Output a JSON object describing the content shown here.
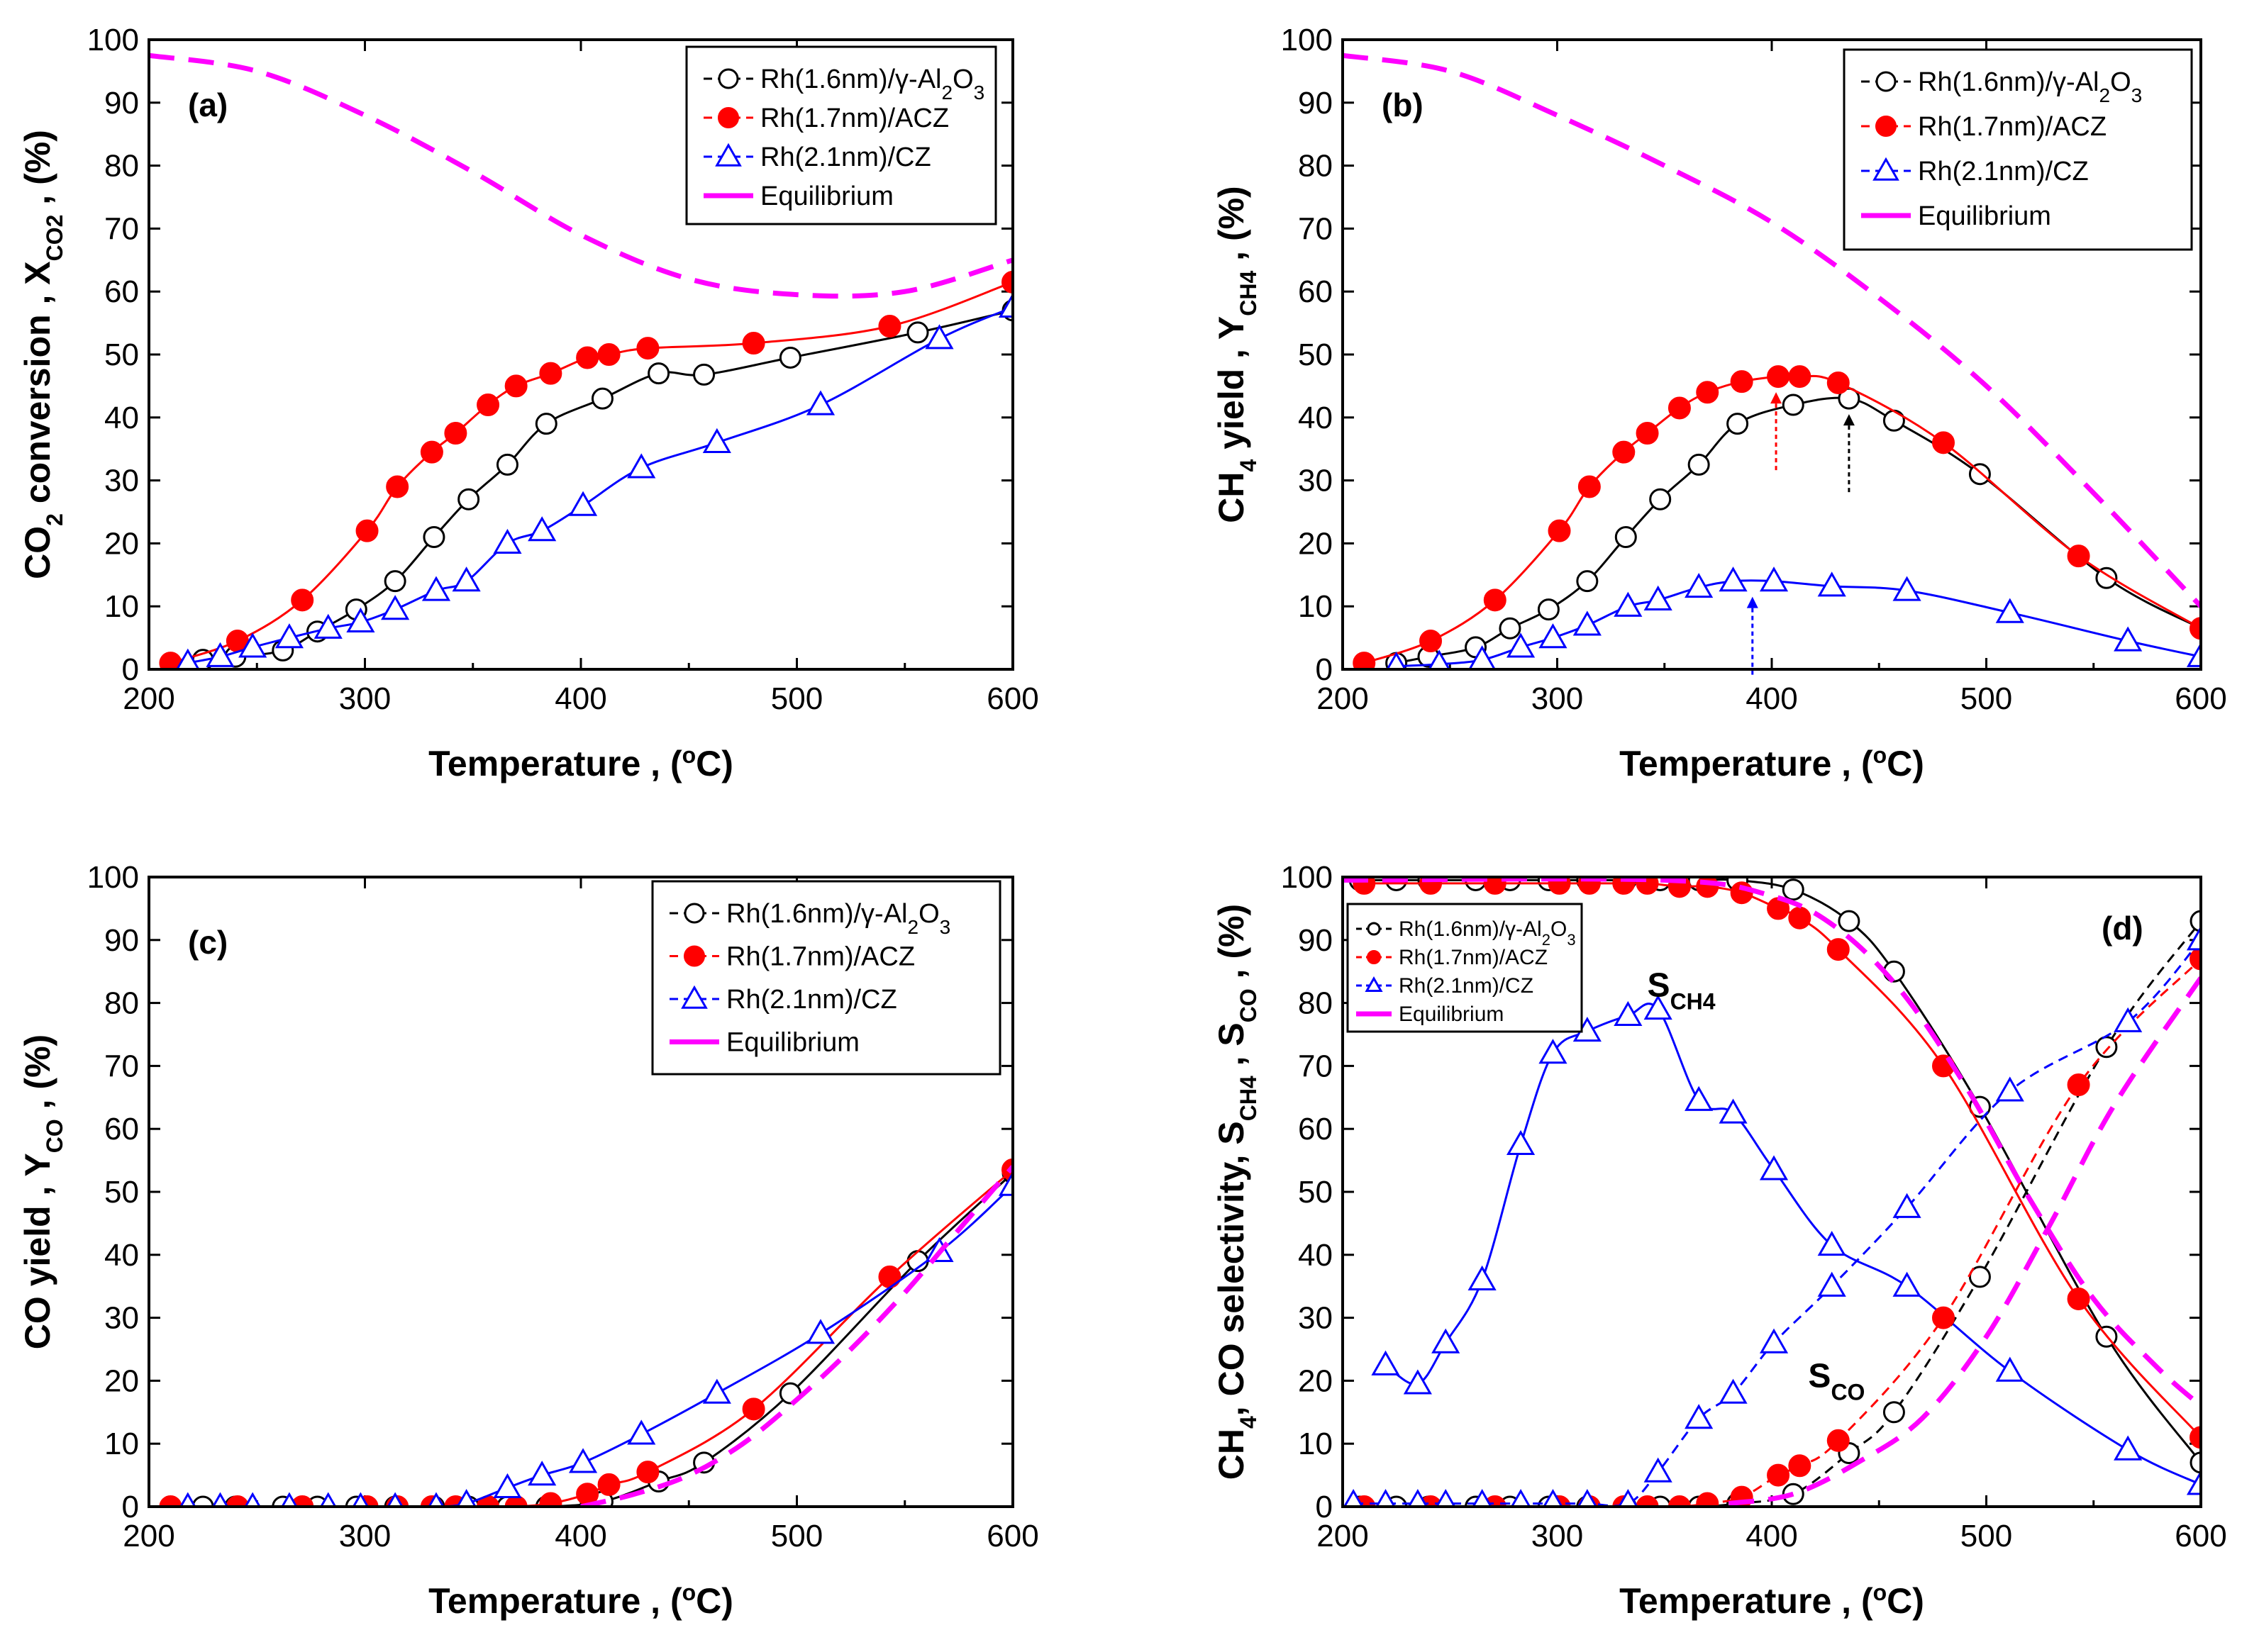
{
  "figure": "CO2 methanation over Rh catalysts",
  "colors": {
    "alumina": "#000000",
    "acz": "#ff0000",
    "cz": "#0000ff",
    "equilibrium": "#ff00ff"
  },
  "legend_labels": {
    "s1_main": "Rh(1.6nm)/γ-Al",
    "s1_sub": "2",
    "s1_main2": "O",
    "s1_sub2": "3",
    "s2": "Rh(1.7nm)/ACZ",
    "s3": "Rh(2.1nm)/CZ",
    "s4": "Equilibrium"
  },
  "xlabel": {
    "main": "Temperature , (",
    "sup": "o",
    "tail": "C)"
  },
  "chart_data": [
    {
      "id": "a",
      "type": "line",
      "panel_label": "(a)",
      "ylabel": {
        "p1": "CO",
        "s1": "2",
        "p2": " conversion , X",
        "s2": "CO2",
        "p3": " , (%)"
      },
      "xlim": [
        200,
        600
      ],
      "ylim": [
        0,
        100
      ],
      "xticks": [
        200,
        300,
        400,
        500,
        600
      ],
      "yticks": [
        0,
        10,
        20,
        30,
        40,
        50,
        60,
        70,
        80,
        90,
        100
      ],
      "series": [
        {
          "name": "Rh(1.6nm)/γ-Al2O3",
          "key": "alumina",
          "marker": "circle-open",
          "x": [
            210,
            225,
            240,
            262,
            278,
            296,
            314,
            332,
            348,
            366,
            384,
            410,
            436,
            457,
            497,
            556,
            600
          ],
          "y": [
            1,
            1.5,
            2,
            3,
            6,
            9.5,
            14,
            21,
            27,
            32.5,
            39,
            43,
            47,
            46.8,
            49.5,
            53.5,
            57
          ]
        },
        {
          "name": "Rh(1.7nm)/ACZ",
          "key": "acz",
          "marker": "circle-filled",
          "x": [
            210,
            241,
            271,
            301,
            315,
            331,
            342,
            357,
            370,
            386,
            403,
            413,
            431,
            480,
            543,
            600
          ],
          "y": [
            1,
            4.5,
            11,
            22,
            29,
            34.5,
            37.5,
            42,
            45,
            47,
            49.5,
            50,
            51,
            51.8,
            54.5,
            61.5
          ]
        },
        {
          "name": "Rh(2.1nm)/CZ",
          "key": "cz",
          "marker": "triangle-open",
          "x": [
            218,
            233,
            248,
            265,
            283,
            298,
            314,
            333,
            347,
            366,
            382,
            401,
            428,
            463,
            511,
            566,
            600
          ],
          "y": [
            1,
            2,
            3.5,
            5,
            6.5,
            7.5,
            9.5,
            12.5,
            14,
            20,
            22,
            26,
            32,
            36,
            42,
            52.5,
            57.5
          ]
        },
        {
          "name": "Equilibrium",
          "key": "equilibrium",
          "marker": "dash",
          "x": [
            200,
            250,
            300,
            350,
            400,
            450,
            500,
            550,
            600
          ],
          "y": [
            97.5,
            95,
            88,
            79,
            69,
            62,
            59.5,
            60,
            65
          ]
        }
      ]
    },
    {
      "id": "b",
      "type": "line",
      "panel_label": "(b)",
      "ylabel": {
        "p1": "CH",
        "s1": "4",
        "p2": " yield , Y",
        "s2": "CH4",
        "p3": " , (%)"
      },
      "xlim": [
        200,
        600
      ],
      "ylim": [
        0,
        100
      ],
      "xticks": [
        200,
        300,
        400,
        500,
        600
      ],
      "yticks": [
        0,
        10,
        20,
        30,
        40,
        50,
        60,
        70,
        80,
        90,
        100
      ],
      "arrows": [
        {
          "x": 402,
          "key": "acz"
        },
        {
          "x": 436,
          "key": "alumina"
        },
        {
          "x": 391,
          "key": "cz"
        }
      ],
      "series": [
        {
          "name": "Rh(1.6nm)/γ-Al2O3",
          "key": "alumina",
          "marker": "circle-open",
          "x": [
            225,
            240,
            262,
            278,
            296,
            314,
            332,
            348,
            366,
            384,
            410,
            436,
            457,
            497,
            556,
            600
          ],
          "y": [
            1,
            2,
            3.5,
            6.5,
            9.5,
            14,
            21,
            27,
            32.5,
            39,
            42,
            43,
            39.5,
            31,
            14.5,
            6.5
          ]
        },
        {
          "name": "Rh(1.7nm)/ACZ",
          "key": "acz",
          "marker": "circle-filled",
          "x": [
            210,
            241,
            271,
            301,
            315,
            331,
            342,
            357,
            370,
            386,
            403,
            413,
            431,
            480,
            543,
            600
          ],
          "y": [
            1,
            4.5,
            11,
            22,
            29,
            34.5,
            37.5,
            41.5,
            44,
            45.7,
            46.5,
            46.5,
            45.5,
            36,
            18,
            6.5
          ]
        },
        {
          "name": "Rh(2.1nm)/CZ",
          "key": "cz",
          "marker": "triangle-open",
          "x": [
            225,
            245,
            265,
            283,
            298,
            314,
            333,
            347,
            366,
            382,
            401,
            428,
            463,
            511,
            566,
            600
          ],
          "y": [
            0.5,
            0.8,
            1.5,
            3.5,
            5,
            7,
            10,
            11,
            13,
            14,
            14,
            13.2,
            12.5,
            9,
            4.5,
            2
          ]
        },
        {
          "name": "Equilibrium",
          "key": "equilibrium",
          "marker": "dash",
          "x": [
            200,
            250,
            300,
            350,
            400,
            450,
            500,
            550,
            600
          ],
          "y": [
            97.5,
            95,
            88,
            80,
            71,
            59,
            45,
            28,
            10
          ]
        }
      ]
    },
    {
      "id": "c",
      "type": "line",
      "panel_label": "(c)",
      "ylabel": {
        "p1": "CO yield , Y",
        "s1": "CO",
        "p2": " , (%)",
        "s2": "",
        "p3": ""
      },
      "xlim": [
        200,
        600
      ],
      "ylim": [
        0,
        100
      ],
      "xticks": [
        200,
        300,
        400,
        500,
        600
      ],
      "yticks": [
        0,
        10,
        20,
        30,
        40,
        50,
        60,
        70,
        80,
        90,
        100
      ],
      "series": [
        {
          "name": "Rh(1.6nm)/γ-Al2O3",
          "key": "alumina",
          "marker": "circle-open",
          "x": [
            210,
            225,
            240,
            262,
            278,
            296,
            314,
            332,
            348,
            366,
            384,
            410,
            436,
            457,
            497,
            556,
            600
          ],
          "y": [
            0,
            0,
            0,
            0,
            0,
            0,
            0,
            0,
            0,
            0,
            0,
            0.8,
            4,
            7,
            18,
            39,
            53
          ]
        },
        {
          "name": "Rh(1.7nm)/ACZ",
          "key": "acz",
          "marker": "circle-filled",
          "x": [
            210,
            241,
            271,
            301,
            315,
            331,
            342,
            357,
            370,
            386,
            403,
            413,
            431,
            480,
            543,
            600
          ],
          "y": [
            0,
            0,
            0,
            0,
            0,
            0,
            0,
            0,
            0,
            0.5,
            2,
            3.5,
            5.5,
            15.5,
            36.5,
            53.5
          ]
        },
        {
          "name": "Rh(2.1nm)/CZ",
          "key": "cz",
          "marker": "triangle-open",
          "x": [
            218,
            233,
            248,
            265,
            283,
            298,
            314,
            333,
            347,
            366,
            382,
            401,
            428,
            463,
            511,
            566,
            600
          ],
          "y": [
            0,
            0,
            0,
            0,
            0,
            0,
            0,
            0,
            0.5,
            3,
            5,
            7,
            11.5,
            18,
            27.5,
            40.5,
            51
          ]
        },
        {
          "name": "Equilibrium",
          "key": "equilibrium",
          "marker": "dash",
          "x": [
            400,
            425,
            450,
            475,
            500,
            525,
            550,
            575,
            600
          ],
          "y": [
            0,
            2,
            5,
            10,
            17,
            25,
            34,
            44,
            54
          ]
        }
      ]
    },
    {
      "id": "d",
      "type": "line",
      "panel_label": "(d)",
      "legend_style": "small",
      "ylabel": {
        "p1": "CH",
        "s1": "4",
        "p2": ", CO selectivity, S",
        "s2": "CH4",
        "p3": " , S",
        "s3": "CO",
        "p4": " , (%)"
      },
      "annotations": [
        {
          "main": "S",
          "sub": "CH4",
          "x": 342,
          "y": 81
        },
        {
          "main": "S",
          "sub": "CO",
          "x": 417,
          "y": 19
        }
      ],
      "xlim": [
        200,
        600
      ],
      "ylim": [
        0,
        100
      ],
      "xticks": [
        200,
        300,
        400,
        500,
        600
      ],
      "yticks": [
        0,
        10,
        20,
        30,
        40,
        50,
        60,
        70,
        80,
        90,
        100
      ],
      "series": [
        {
          "name": "Rh(1.6nm)/γ-Al2O3 S_CH4",
          "key": "alumina",
          "marker": "circle-open",
          "style": "solid",
          "x": [
            208,
            225,
            240,
            262,
            278,
            296,
            314,
            332,
            348,
            366,
            384,
            410,
            436,
            457,
            497,
            556,
            600
          ],
          "y": [
            99.5,
            99.5,
            99.5,
            99.5,
            99.5,
            99.5,
            99.5,
            99.5,
            99.5,
            99.5,
            99.5,
            98,
            93,
            85,
            63.5,
            27,
            7
          ]
        },
        {
          "name": "Rh(1.7nm)/ACZ S_CH4",
          "key": "acz",
          "marker": "circle-filled",
          "style": "solid",
          "x": [
            210,
            241,
            271,
            301,
            315,
            331,
            342,
            357,
            370,
            386,
            403,
            413,
            431,
            480,
            543,
            600
          ],
          "y": [
            99,
            99,
            99,
            99,
            99,
            99,
            99,
            98.5,
            98.5,
            97.5,
            95,
            93.5,
            88.5,
            70,
            33,
            11
          ]
        },
        {
          "name": "Rh(2.1nm)/CZ S_CH4",
          "key": "cz",
          "marker": "triangle-open",
          "style": "solid",
          "x": [
            220,
            235,
            248,
            265,
            283,
            298,
            314,
            333,
            347,
            366,
            382,
            401,
            428,
            463,
            511,
            566,
            600
          ],
          "y": [
            22.5,
            19.5,
            26,
            36,
            57.5,
            72,
            75.5,
            78,
            79,
            64.5,
            62.5,
            53.5,
            41.5,
            35,
            21.5,
            9,
            3.5
          ]
        },
        {
          "name": "Rh(1.6nm)/γ-Al2O3 S_CO",
          "key": "alumina",
          "marker": "circle-open",
          "style": "dashed",
          "x": [
            208,
            225,
            240,
            262,
            278,
            296,
            314,
            332,
            348,
            366,
            384,
            410,
            436,
            457,
            497,
            556,
            600
          ],
          "y": [
            0,
            0,
            0,
            0,
            0,
            0,
            0,
            0,
            0,
            0,
            0.5,
            2,
            8.5,
            15,
            36.5,
            73,
            93
          ]
        },
        {
          "name": "Rh(1.7nm)/ACZ S_CO",
          "key": "acz",
          "marker": "circle-filled",
          "style": "dashed",
          "x": [
            210,
            241,
            271,
            301,
            315,
            331,
            342,
            357,
            370,
            386,
            403,
            413,
            431,
            480,
            543,
            600
          ],
          "y": [
            0,
            0,
            0,
            0,
            0,
            0,
            0,
            0,
            0.5,
            1.5,
            5,
            6.5,
            10.5,
            30,
            67,
            87
          ]
        },
        {
          "name": "Rh(2.1nm)/CZ S_CO",
          "key": "cz",
          "marker": "triangle-open",
          "style": "dashed",
          "x": [
            205,
            220,
            235,
            248,
            265,
            283,
            298,
            314,
            333,
            347,
            366,
            382,
            401,
            428,
            463,
            511,
            566,
            600
          ],
          "y": [
            0.5,
            0.5,
            0.5,
            0.5,
            0.5,
            0.5,
            0.5,
            0.5,
            0.5,
            5.5,
            14,
            18,
            26,
            35,
            47.5,
            66,
            77,
            90
          ]
        },
        {
          "name": "Equilibrium S_CH4",
          "key": "equilibrium",
          "marker": "dash",
          "style": "dash",
          "x": [
            200,
            350,
            400,
            430,
            460,
            490,
            520,
            550,
            580,
            600
          ],
          "y": [
            99.5,
            99.5,
            97,
            92,
            82,
            67,
            49,
            33,
            22,
            16
          ]
        },
        {
          "name": "Equilibrium S_CO",
          "key": "equilibrium",
          "marker": "dash",
          "style": "dash",
          "x": [
            380,
            410,
            440,
            470,
            500,
            530,
            560,
            600
          ],
          "y": [
            0.5,
            2,
            7,
            14,
            27,
            45,
            64,
            84
          ]
        }
      ]
    }
  ]
}
